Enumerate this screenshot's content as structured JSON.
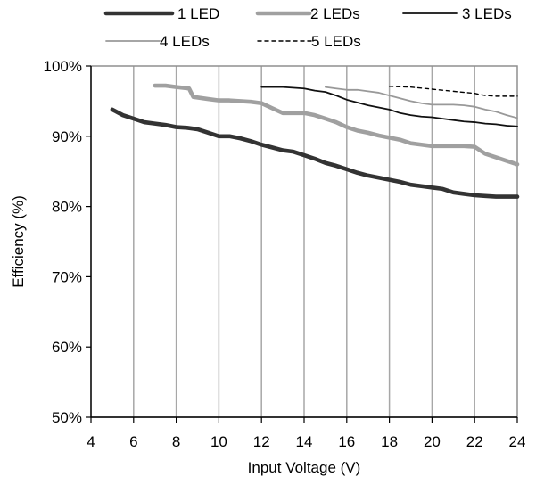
{
  "chart_data": {
    "type": "line",
    "title": "",
    "xlabel": "Input Voltage (V)",
    "ylabel": "Efficiency (%)",
    "xlim": [
      4,
      24
    ],
    "ylim": [
      50,
      100
    ],
    "x_ticks": [
      4,
      6,
      8,
      10,
      12,
      14,
      16,
      18,
      20,
      22,
      24
    ],
    "y_ticks": [
      50,
      60,
      70,
      80,
      90,
      100
    ],
    "x_tick_labels": [
      "4",
      "6",
      "8",
      "10",
      "12",
      "14",
      "16",
      "18",
      "20",
      "22",
      "24"
    ],
    "y_tick_labels": [
      "50%",
      "60%",
      "70%",
      "80%",
      "90%",
      "100%"
    ],
    "grid": "vertical",
    "legend_placement": "top",
    "series": [
      {
        "name": "1 LED",
        "color": "#333333",
        "style": "thick-solid",
        "points": [
          [
            5,
            93.8
          ],
          [
            5.5,
            93
          ],
          [
            6,
            92.5
          ],
          [
            6.5,
            92
          ],
          [
            7,
            91.8
          ],
          [
            7.5,
            91.6
          ],
          [
            8,
            91.3
          ],
          [
            8.5,
            91.2
          ],
          [
            9,
            91
          ],
          [
            9.5,
            90.5
          ],
          [
            10,
            90
          ],
          [
            10.5,
            90
          ],
          [
            11,
            89.7
          ],
          [
            11.5,
            89.3
          ],
          [
            12,
            88.8
          ],
          [
            12.5,
            88.4
          ],
          [
            13,
            88
          ],
          [
            13.5,
            87.8
          ],
          [
            14,
            87.3
          ],
          [
            14.5,
            86.8
          ],
          [
            15,
            86.2
          ],
          [
            15.5,
            85.8
          ],
          [
            16,
            85.3
          ],
          [
            16.5,
            84.8
          ],
          [
            17,
            84.4
          ],
          [
            17.5,
            84.1
          ],
          [
            18,
            83.8
          ],
          [
            18.5,
            83.5
          ],
          [
            19,
            83.1
          ],
          [
            19.5,
            82.9
          ],
          [
            20,
            82.7
          ],
          [
            20.5,
            82.5
          ],
          [
            21,
            82
          ],
          [
            21.5,
            81.8
          ],
          [
            22,
            81.6
          ],
          [
            22.5,
            81.5
          ],
          [
            23,
            81.4
          ],
          [
            23.5,
            81.4
          ],
          [
            24,
            81.4
          ]
        ]
      },
      {
        "name": "2 LEDs",
        "color": "#a0a0a0",
        "style": "thick-solid",
        "points": [
          [
            7,
            97.2
          ],
          [
            7.5,
            97.2
          ],
          [
            8,
            97
          ],
          [
            8.6,
            96.8
          ],
          [
            8.8,
            95.6
          ],
          [
            9.5,
            95.3
          ],
          [
            10,
            95.1
          ],
          [
            10.5,
            95.1
          ],
          [
            11,
            95
          ],
          [
            11.5,
            94.9
          ],
          [
            12,
            94.7
          ],
          [
            12.5,
            94
          ],
          [
            13,
            93.3
          ],
          [
            14,
            93.3
          ],
          [
            14.5,
            93
          ],
          [
            15,
            92.5
          ],
          [
            15.5,
            92
          ],
          [
            16,
            91.3
          ],
          [
            16.5,
            90.8
          ],
          [
            17,
            90.5
          ],
          [
            17.5,
            90.1
          ],
          [
            18,
            89.8
          ],
          [
            18.5,
            89.5
          ],
          [
            19,
            89
          ],
          [
            19.5,
            88.8
          ],
          [
            20,
            88.6
          ],
          [
            20.5,
            88.6
          ],
          [
            21,
            88.6
          ],
          [
            21.5,
            88.6
          ],
          [
            22,
            88.5
          ],
          [
            22.5,
            87.5
          ],
          [
            23,
            87
          ],
          [
            23.5,
            86.5
          ],
          [
            24,
            86
          ]
        ]
      },
      {
        "name": "3 LEDs",
        "color": "#111111",
        "style": "thin-solid",
        "points": [
          [
            12,
            97
          ],
          [
            13,
            97
          ],
          [
            14,
            96.8
          ],
          [
            14.5,
            96.5
          ],
          [
            15,
            96.3
          ],
          [
            15.5,
            95.8
          ],
          [
            16,
            95.2
          ],
          [
            16.5,
            94.8
          ],
          [
            17,
            94.4
          ],
          [
            17.5,
            94.1
          ],
          [
            18,
            93.8
          ],
          [
            18.5,
            93.3
          ],
          [
            19,
            93
          ],
          [
            19.5,
            92.8
          ],
          [
            20,
            92.7
          ],
          [
            20.5,
            92.5
          ],
          [
            21,
            92.3
          ],
          [
            21.5,
            92.1
          ],
          [
            22,
            92
          ],
          [
            22.5,
            91.8
          ],
          [
            23,
            91.7
          ],
          [
            23.5,
            91.5
          ],
          [
            24,
            91.4
          ]
        ]
      },
      {
        "name": "4 LEDs",
        "color": "#999999",
        "style": "thin-solid",
        "points": [
          [
            15,
            97
          ],
          [
            15.5,
            96.8
          ],
          [
            16,
            96.6
          ],
          [
            16.5,
            96.6
          ],
          [
            17,
            96.4
          ],
          [
            17.5,
            96.2
          ],
          [
            18,
            95.8
          ],
          [
            18.5,
            95.4
          ],
          [
            19,
            95
          ],
          [
            19.5,
            94.7
          ],
          [
            20,
            94.5
          ],
          [
            20.5,
            94.5
          ],
          [
            21,
            94.5
          ],
          [
            21.5,
            94.4
          ],
          [
            22,
            94.2
          ],
          [
            22.5,
            93.8
          ],
          [
            23,
            93.5
          ],
          [
            23.5,
            93
          ],
          [
            24,
            92.6
          ]
        ]
      },
      {
        "name": "5 LEDs",
        "color": "#000000",
        "style": "dotted",
        "points": [
          [
            18,
            97.1
          ],
          [
            19,
            97
          ],
          [
            20,
            96.7
          ],
          [
            21,
            96.4
          ],
          [
            22,
            96.1
          ],
          [
            22.5,
            95.8
          ],
          [
            23,
            95.7
          ],
          [
            24,
            95.7
          ]
        ]
      }
    ]
  }
}
